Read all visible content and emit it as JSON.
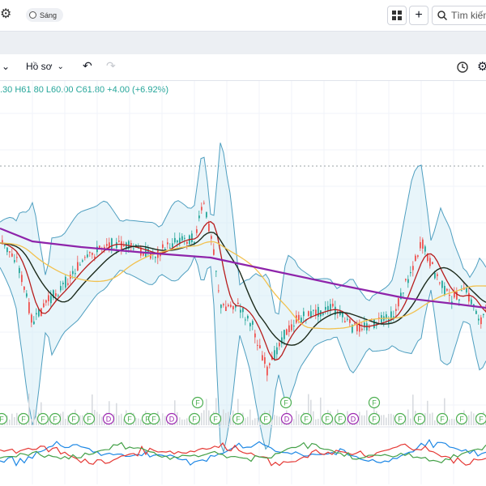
{
  "header": {
    "theme_label": "Sáng",
    "search_placeholder": "Tìm kiếm",
    "icons": [
      "gear-icon",
      "grid-layout-icon",
      "plus-icon",
      "search-icon"
    ]
  },
  "toolbar": {
    "profile_label": "Hồ sơ",
    "icons": [
      "chevron-down-icon",
      "undo-icon",
      "redo-icon",
      "clock-icon",
      "gear-icon"
    ]
  },
  "ohlc": {
    "open_partial": ".30",
    "high": "H61.80",
    "low": "L60.00",
    "close": "C61.80",
    "change": "+4.00 (+6.92%)"
  },
  "events": {
    "markers": [
      "F",
      "F",
      "F",
      "F",
      "F",
      "F",
      "D",
      "F",
      "F",
      "F",
      "D",
      "F",
      "F",
      "F",
      "F",
      "D",
      "F",
      "F",
      "F",
      "D",
      "F",
      "F",
      "F",
      "F",
      "F",
      "F",
      "D",
      "F",
      "F"
    ],
    "raised_markers": [
      "F",
      "F",
      "F"
    ]
  },
  "colors": {
    "accent": "#26a69a",
    "dividend_marker": "#9c27b0",
    "earnings_marker": "#4caf50",
    "ma_purple": "#8e24aa",
    "ma_black": "#1b2a1b",
    "ma_red": "#b71c1c",
    "ma_yellow": "#f2c14e"
  },
  "chart_data": {
    "type": "candlestick",
    "last_bar": {
      "high": 61.8,
      "low": 60.0,
      "close": 61.8,
      "change": 4.0,
      "change_pct": 6.92
    },
    "overlays": [
      "bollinger_bands",
      "moving_average_short",
      "moving_average_mid",
      "moving_average_long",
      "moving_average_very_long"
    ],
    "subpane": "oscillator (3 lines: blue, red, green)",
    "grid": true
  }
}
